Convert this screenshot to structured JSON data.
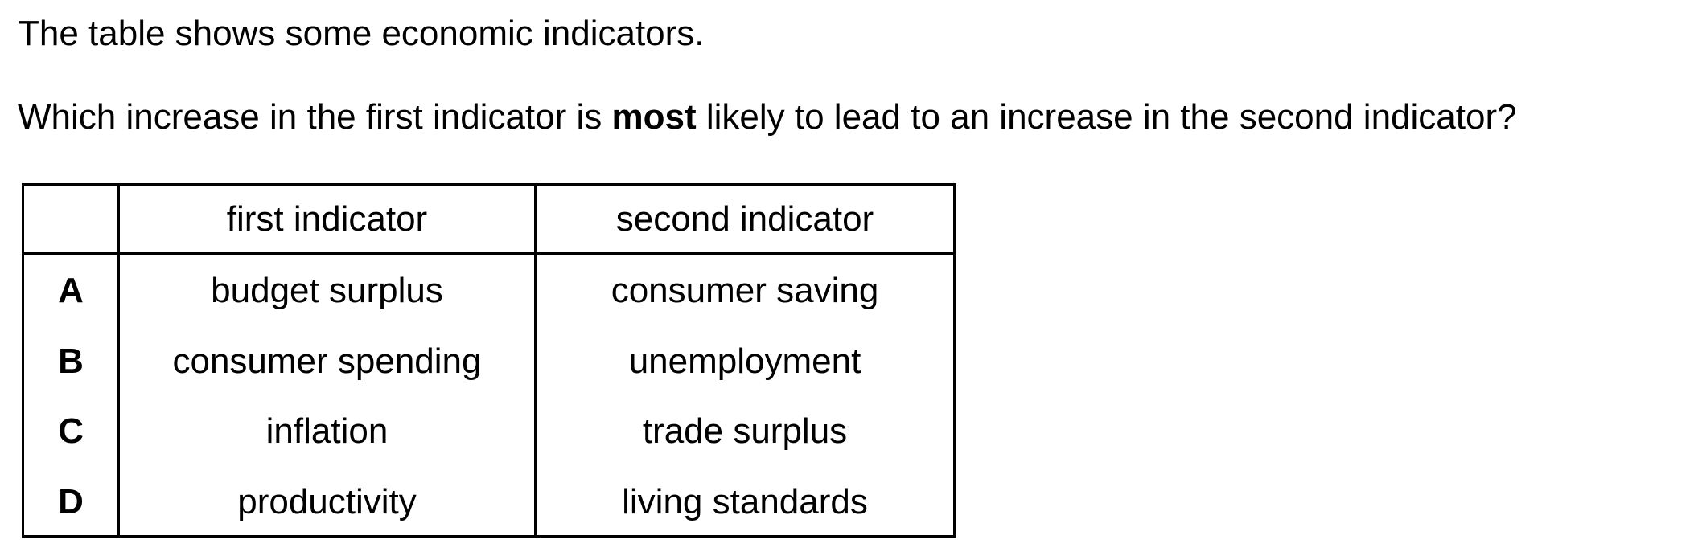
{
  "intro": "The table shows some economic indicators.",
  "question": {
    "before": "Which increase in the first indicator is ",
    "emphasis": "most",
    "after": " likely to lead to an increase in the second indicator?"
  },
  "table": {
    "headers": [
      "",
      "first indicator",
      "second indicator"
    ],
    "rows": [
      {
        "option": "A",
        "first": "budget surplus",
        "second": "consumer saving"
      },
      {
        "option": "B",
        "first": "consumer spending",
        "second": "unemployment"
      },
      {
        "option": "C",
        "first": "inflation",
        "second": "trade surplus"
      },
      {
        "option": "D",
        "first": "productivity",
        "second": "living standards"
      }
    ]
  }
}
